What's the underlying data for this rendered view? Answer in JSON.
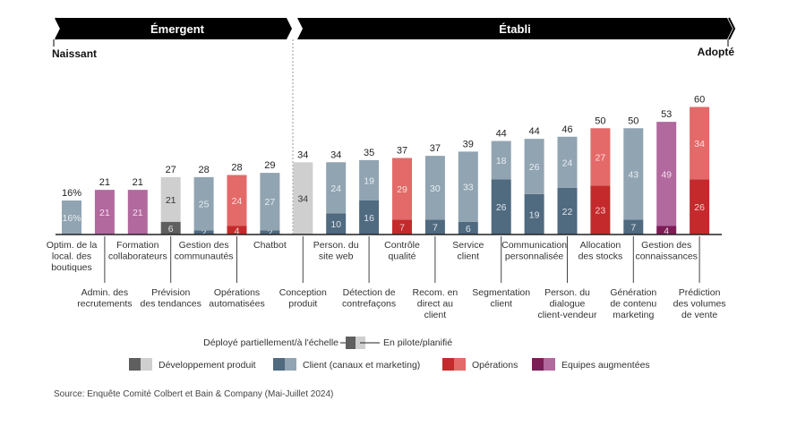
{
  "chart_data": {
    "type": "bar",
    "stacked": true,
    "unit": "%",
    "phases": [
      {
        "name": "Émergent",
        "start_label": "Naissant"
      },
      {
        "name": "Établi",
        "end_label": "Adopté"
      }
    ],
    "categories": [
      {
        "label": "Optim. de la local. des boutiques",
        "lines": [
          "Optim. de la",
          "local. des",
          "boutiques"
        ],
        "row": "top",
        "phase": "Émergent",
        "group": "client",
        "deployed": 0,
        "pilot": 16,
        "total": "16%",
        "pilot_label": "16%"
      },
      {
        "label": "Admin. des recrutements",
        "lines": [
          "Admin. des",
          "recrutements"
        ],
        "row": "bottom",
        "phase": "Émergent",
        "group": "equipes",
        "deployed": 0,
        "pilot": 21,
        "total": "21"
      },
      {
        "label": "Formation collaborateurs",
        "lines": [
          "Formation",
          "collaborateurs"
        ],
        "row": "top",
        "phase": "Émergent",
        "group": "equipes",
        "deployed": 0,
        "pilot": 21,
        "total": "21"
      },
      {
        "label": "Prévision des tendances",
        "lines": [
          "Prévision",
          "des tendances"
        ],
        "row": "bottom",
        "phase": "Émergent",
        "group": "produit",
        "deployed": 6,
        "pilot": 21,
        "total": "27"
      },
      {
        "label": "Gestion des communautés",
        "lines": [
          "Gestion des",
          "communautés"
        ],
        "row": "top",
        "phase": "Émergent",
        "group": "client",
        "deployed": 2,
        "pilot": 25,
        "total": "28"
      },
      {
        "label": "Opérations automatisées",
        "lines": [
          "Opérations",
          "automatisées"
        ],
        "row": "bottom",
        "phase": "Émergent",
        "group": "operations",
        "deployed": 4,
        "pilot": 24,
        "total": "28"
      },
      {
        "label": "Chatbot",
        "lines": [
          "Chatbot"
        ],
        "row": "top",
        "phase": "Émergent",
        "group": "client",
        "deployed": 2,
        "pilot": 27,
        "total": "29"
      },
      {
        "label": "Conception produit",
        "lines": [
          "Conception",
          "produit"
        ],
        "row": "bottom",
        "phase": "Établi",
        "group": "produit",
        "deployed": 0,
        "pilot": 34,
        "total": "34"
      },
      {
        "label": "Person. du site web",
        "lines": [
          "Person. du",
          "site web"
        ],
        "row": "top",
        "phase": "Établi",
        "group": "client",
        "deployed": 10,
        "pilot": 24,
        "total": "34"
      },
      {
        "label": "Détection de contrefaçons",
        "lines": [
          "Détection de",
          "contrefaçons"
        ],
        "row": "bottom",
        "phase": "Établi",
        "group": "client",
        "deployed": 16,
        "pilot": 19,
        "total": "35"
      },
      {
        "label": "Contrôle qualité",
        "lines": [
          "Contrôle",
          "qualité"
        ],
        "row": "top",
        "phase": "Établi",
        "group": "operations",
        "deployed": 7,
        "pilot": 29,
        "total": "37"
      },
      {
        "label": "Recom. en direct au client",
        "lines": [
          "Recom. en",
          "direct au",
          "client"
        ],
        "row": "bottom",
        "phase": "Établi",
        "group": "client",
        "deployed": 7,
        "pilot": 30,
        "total": "37"
      },
      {
        "label": "Service client",
        "lines": [
          "Service",
          "client"
        ],
        "row": "top",
        "phase": "Établi",
        "group": "client",
        "deployed": 6,
        "pilot": 33,
        "total": "39"
      },
      {
        "label": "Segmentation client",
        "lines": [
          "Segmentation",
          "client"
        ],
        "row": "bottom",
        "phase": "Établi",
        "group": "client",
        "deployed": 26,
        "pilot": 18,
        "total": "44"
      },
      {
        "label": "Communication personnalisée",
        "lines": [
          "Communication",
          "personnalisée"
        ],
        "row": "top",
        "phase": "Établi",
        "group": "client",
        "deployed": 19,
        "pilot": 26,
        "total": "44"
      },
      {
        "label": "Person. du dialogue client-vendeur",
        "lines": [
          "Person. du",
          "dialogue",
          "client-vendeur"
        ],
        "row": "bottom",
        "phase": "Établi",
        "group": "client",
        "deployed": 22,
        "pilot": 24,
        "total": "46"
      },
      {
        "label": "Allocation des stocks",
        "lines": [
          "Allocation",
          "des stocks"
        ],
        "row": "top",
        "phase": "Établi",
        "group": "operations",
        "deployed": 23,
        "pilot": 27,
        "total": "50"
      },
      {
        "label": "Génération de contenu marketing",
        "lines": [
          "Génération",
          "de contenu",
          "marketing"
        ],
        "row": "bottom",
        "phase": "Établi",
        "group": "client",
        "deployed": 7,
        "pilot": 43,
        "total": "50"
      },
      {
        "label": "Gestion des connaissances",
        "lines": [
          "Gestion des",
          "connaissances"
        ],
        "row": "top",
        "phase": "Établi",
        "group": "equipes",
        "deployed": 4,
        "pilot": 49,
        "total": "53"
      },
      {
        "label": "Prédiction des volumes de vente",
        "lines": [
          "Prédiction",
          "des volumes",
          "de vente"
        ],
        "row": "bottom",
        "phase": "Établi",
        "group": "operations",
        "deployed": 26,
        "pilot": 34,
        "total": "60"
      }
    ],
    "groups": {
      "produit": {
        "name": "Développement produit",
        "deployed_color": "#5f5f5f",
        "pilot_color": "#cfcfcf",
        "deployed_text": "#e0e0e0",
        "pilot_text": "#333333"
      },
      "client": {
        "name": "Client (canaux et marketing)",
        "deployed_color": "#506a80",
        "pilot_color": "#91a4b2",
        "deployed_text": "#dfe6ec",
        "pilot_text": "#e8eef2"
      },
      "operations": {
        "name": "Opérations",
        "deployed_color": "#c42a2c",
        "pilot_color": "#e36a68",
        "deployed_text": "#f6d0d0",
        "pilot_text": "#fbe0e0"
      },
      "equipes": {
        "name": "Equipes augmentées",
        "deployed_color": "#7c1d55",
        "pilot_color": "#b1699e",
        "deployed_text": "#f0d4e6",
        "pilot_text": "#f6e0ef"
      }
    },
    "legend": {
      "status_left": "Déployé partiellement/à l'échelle",
      "status_right": "En pilote/planifié",
      "items": [
        "Développement produit",
        "Client (canaux et marketing)",
        "Opérations",
        "Equipes augmentées"
      ],
      "placement": "bottom-center"
    },
    "ylim": [
      0,
      60
    ],
    "grid": false,
    "xlabel": "",
    "ylabel": ""
  },
  "source": "Source: Enquête Comité Colbert et Bain & Company (Mai-Juillet 2024)",
  "colors": {
    "phase_band": "#000000",
    "axis": "#222222",
    "divider": "#999999"
  }
}
